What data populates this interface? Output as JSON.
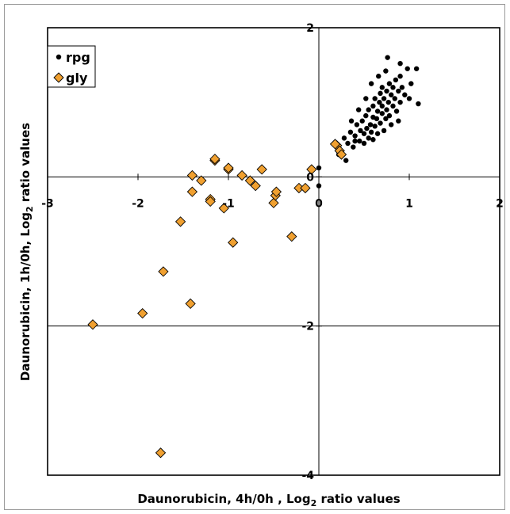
{
  "chart_data": {
    "type": "scatter",
    "title": "",
    "xlabel": "Daunorubicin, 4h/0h , Log",
    "xlabel_sub": "2",
    "xlabel_tail": " ratio values",
    "ylabel": "Daunorubicin, 1h/0h, Log",
    "ylabel_sub": "2",
    "ylabel_tail": " ratio values",
    "xlim": [
      -3,
      2
    ],
    "ylim": [
      -4,
      2
    ],
    "xticks": [
      -3,
      -2,
      -1,
      0,
      1,
      2
    ],
    "yticks": [
      -4,
      -2,
      0,
      2
    ],
    "xtick_labels": [
      "-3",
      "-2",
      "-1",
      "0",
      "1",
      "2"
    ],
    "ytick_labels": [
      "-4",
      "-2",
      "0",
      "2"
    ],
    "grid": false,
    "legend_position": "top-left",
    "series": [
      {
        "name": "rpg",
        "marker": "circle",
        "color": "#000000",
        "points": [
          [
            0.0,
            0.12
          ],
          [
            0.0,
            -0.12
          ],
          [
            0.22,
            0.3
          ],
          [
            0.28,
            0.52
          ],
          [
            0.3,
            0.22
          ],
          [
            0.32,
            0.45
          ],
          [
            0.35,
            0.6
          ],
          [
            0.38,
            0.4
          ],
          [
            0.4,
            0.55
          ],
          [
            0.42,
            0.7
          ],
          [
            0.45,
            0.48
          ],
          [
            0.46,
            0.62
          ],
          [
            0.48,
            0.75
          ],
          [
            0.5,
            0.58
          ],
          [
            0.5,
            0.45
          ],
          [
            0.52,
            0.82
          ],
          [
            0.53,
            0.65
          ],
          [
            0.55,
            0.52
          ],
          [
            0.55,
            0.9
          ],
          [
            0.57,
            0.7
          ],
          [
            0.58,
            0.6
          ],
          [
            0.6,
            0.8
          ],
          [
            0.6,
            0.95
          ],
          [
            0.62,
            0.68
          ],
          [
            0.62,
            1.05
          ],
          [
            0.64,
            0.78
          ],
          [
            0.65,
            0.88
          ],
          [
            0.65,
            0.58
          ],
          [
            0.67,
            1.0
          ],
          [
            0.68,
            0.72
          ],
          [
            0.68,
            1.12
          ],
          [
            0.7,
            0.85
          ],
          [
            0.7,
            0.95
          ],
          [
            0.72,
            1.05
          ],
          [
            0.72,
            0.62
          ],
          [
            0.74,
            0.78
          ],
          [
            0.75,
            1.15
          ],
          [
            0.75,
            0.9
          ],
          [
            0.77,
            1.0
          ],
          [
            0.78,
            1.25
          ],
          [
            0.78,
            0.82
          ],
          [
            0.8,
            1.1
          ],
          [
            0.8,
            0.7
          ],
          [
            0.82,
            0.95
          ],
          [
            0.82,
            1.2
          ],
          [
            0.84,
            1.05
          ],
          [
            0.85,
            1.3
          ],
          [
            0.86,
            0.88
          ],
          [
            0.88,
            1.15
          ],
          [
            0.9,
            1.0
          ],
          [
            0.9,
            1.35
          ],
          [
            0.92,
            1.2
          ],
          [
            0.95,
            1.1
          ],
          [
            0.98,
            1.45
          ],
          [
            1.0,
            1.05
          ],
          [
            1.02,
            1.25
          ],
          [
            1.08,
            1.45
          ],
          [
            1.1,
            0.98
          ],
          [
            0.76,
            1.6
          ],
          [
            0.58,
            1.25
          ],
          [
            0.44,
            0.9
          ],
          [
            0.36,
            0.75
          ],
          [
            0.52,
            1.05
          ],
          [
            0.66,
            1.35
          ],
          [
            0.88,
            0.75
          ],
          [
            0.7,
            1.2
          ],
          [
            0.6,
            0.5
          ],
          [
            0.4,
            0.48
          ],
          [
            0.74,
            1.42
          ],
          [
            0.9,
            1.52
          ]
        ]
      },
      {
        "name": "gly",
        "marker": "diamond",
        "color": "#f0a030",
        "points": [
          [
            -2.5,
            -1.98
          ],
          [
            -1.95,
            -1.83
          ],
          [
            -1.75,
            -3.7
          ],
          [
            -1.72,
            -1.27
          ],
          [
            -1.53,
            -0.6
          ],
          [
            -1.42,
            -1.7
          ],
          [
            -1.4,
            0.02
          ],
          [
            -1.4,
            -0.2
          ],
          [
            -1.3,
            -0.05
          ],
          [
            -1.2,
            -0.3
          ],
          [
            -1.2,
            -0.33
          ],
          [
            -1.15,
            0.22
          ],
          [
            -1.15,
            0.24
          ],
          [
            -1.05,
            -0.42
          ],
          [
            -1.0,
            0.1
          ],
          [
            -1.0,
            0.12
          ],
          [
            -0.95,
            -0.88
          ],
          [
            -0.85,
            0.02
          ],
          [
            -0.76,
            -0.05
          ],
          [
            -0.7,
            -0.12
          ],
          [
            -0.63,
            0.1
          ],
          [
            -0.5,
            -0.35
          ],
          [
            -0.48,
            -0.25
          ],
          [
            -0.47,
            -0.2
          ],
          [
            -0.3,
            -0.8
          ],
          [
            -0.22,
            -0.15
          ],
          [
            -0.15,
            -0.15
          ],
          [
            -0.08,
            0.1
          ],
          [
            0.2,
            0.42
          ],
          [
            0.23,
            0.35
          ],
          [
            0.25,
            0.3
          ],
          [
            0.18,
            0.44
          ]
        ]
      }
    ]
  }
}
